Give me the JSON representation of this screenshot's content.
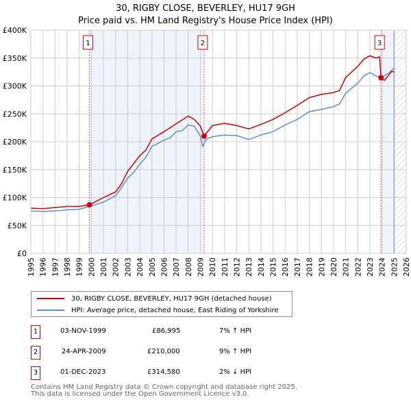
{
  "chart_data": {
    "type": "line",
    "title": "30, RIGBY CLOSE, BEVERLEY, HU17 9GH",
    "subtitle": "Price paid vs. HM Land Registry's House Price Index (HPI)",
    "xlim": [
      1995,
      2026
    ],
    "ylim": [
      0,
      400000
    ],
    "x_ticks": [
      "1995",
      "1996",
      "1997",
      "1998",
      "1999",
      "2000",
      "2001",
      "2002",
      "2003",
      "2004",
      "2005",
      "2006",
      "2007",
      "2008",
      "2009",
      "2010",
      "2011",
      "2012",
      "2013",
      "2014",
      "2015",
      "2016",
      "2017",
      "2018",
      "2019",
      "2020",
      "2021",
      "2022",
      "2023",
      "2024",
      "2025",
      "2026"
    ],
    "y_ticks": [
      {
        "v": 0,
        "l": "£0"
      },
      {
        "v": 50000,
        "l": "£50K"
      },
      {
        "v": 100000,
        "l": "£100K"
      },
      {
        "v": 150000,
        "l": "£150K"
      },
      {
        "v": 200000,
        "l": "£200K"
      },
      {
        "v": 250000,
        "l": "£250K"
      },
      {
        "v": 300000,
        "l": "£300K"
      },
      {
        "v": 350000,
        "l": "£350K"
      },
      {
        "v": 400000,
        "l": "£400K"
      }
    ],
    "grid": true,
    "series": [
      {
        "name": "30, RIGBY CLOSE, BEVERLEY, HU17 9GH (detached house)",
        "color": "#cc0000",
        "x": [
          1995,
          1996,
          1997,
          1998,
          1999,
          1999.84,
          2001,
          2002,
          2002.5,
          2003,
          2004,
          2004.5,
          2005,
          2006,
          2007,
          2008,
          2008.5,
          2009,
          2009.31,
          2010,
          2011,
          2012,
          2013,
          2014,
          2015,
          2016,
          2017,
          2018,
          2019,
          2020,
          2020.5,
          2021,
          2022,
          2022.5,
          2023,
          2023.5,
          2023.8,
          2023.92,
          2024.2,
          2024.8,
          2025
        ],
        "y": [
          81000,
          80000,
          82000,
          84000,
          84000,
          86995,
          100000,
          110000,
          125000,
          147000,
          175000,
          185000,
          205000,
          218000,
          232000,
          246000,
          240000,
          228000,
          210000,
          229000,
          233000,
          229000,
          223000,
          231000,
          240000,
          252000,
          265000,
          279000,
          285000,
          288000,
          292000,
          315000,
          335000,
          348000,
          354000,
          350000,
          352000,
          314580,
          310000,
          326000,
          325000
        ]
      },
      {
        "name": "HPI: Average price, detached house, East Riding of Yorkshire",
        "color": "#5b8fd4",
        "x": [
          1995,
          1996,
          1997,
          1998,
          1999,
          2000,
          2001,
          2002,
          2002.5,
          2003,
          2003.5,
          2004,
          2004.5,
          2005,
          2005.5,
          2006,
          2006.5,
          2007,
          2007.5,
          2008,
          2008.5,
          2009,
          2009.2,
          2009.5,
          2010,
          2011,
          2012,
          2013,
          2014,
          2015,
          2016,
          2017,
          2018,
          2019,
          2020,
          2020.5,
          2021,
          2022,
          2022.5,
          2023,
          2023.5,
          2024,
          2024.5,
          2025
        ],
        "y": [
          76000,
          75000,
          76000,
          78000,
          79000,
          85000,
          92000,
          103000,
          118000,
          135000,
          145000,
          160000,
          172000,
          192000,
          197000,
          203000,
          207000,
          218000,
          220000,
          230000,
          228000,
          210000,
          192000,
          205000,
          209000,
          212000,
          211000,
          204000,
          212000,
          218000,
          230000,
          240000,
          254000,
          258000,
          263000,
          268000,
          287000,
          305000,
          318000,
          324000,
          318000,
          316000,
          322000,
          332000
        ]
      }
    ],
    "sales": [
      {
        "label": "1",
        "date": "03-NOV-1999",
        "x": 1999.84,
        "price": "£86,995",
        "price_value": 86995,
        "hpi": "7% ↑ HPI"
      },
      {
        "label": "2",
        "date": "24-APR-2009",
        "x": 2009.31,
        "price": "£210,000",
        "price_value": 210000,
        "hpi": "9% ↑ HPI"
      },
      {
        "label": "3",
        "date": "01-DEC-2023",
        "x": 2023.92,
        "price": "£314,580",
        "price_value": 314580,
        "hpi": "2% ↓ HPI"
      }
    ],
    "footer": [
      "Contains HM Land Registry data © Crown copyright and database right 2025.",
      "This data is licensed under the Open Government Licence v3.0."
    ]
  }
}
